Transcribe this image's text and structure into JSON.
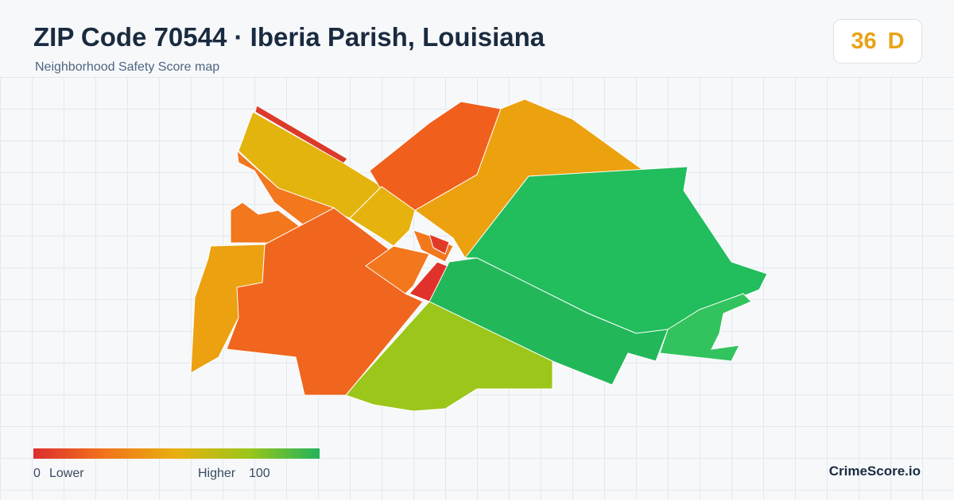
{
  "header": {
    "title": "ZIP Code 70544 · Iberia Parish, Louisiana",
    "subtitle": "Neighborhood Safety Score map"
  },
  "badge": {
    "score": 36,
    "grade": "D"
  },
  "legend": {
    "min": 0,
    "min_label": "Lower",
    "max_label": "Higher",
    "max": 100
  },
  "brand": "CrimeScore.io"
}
